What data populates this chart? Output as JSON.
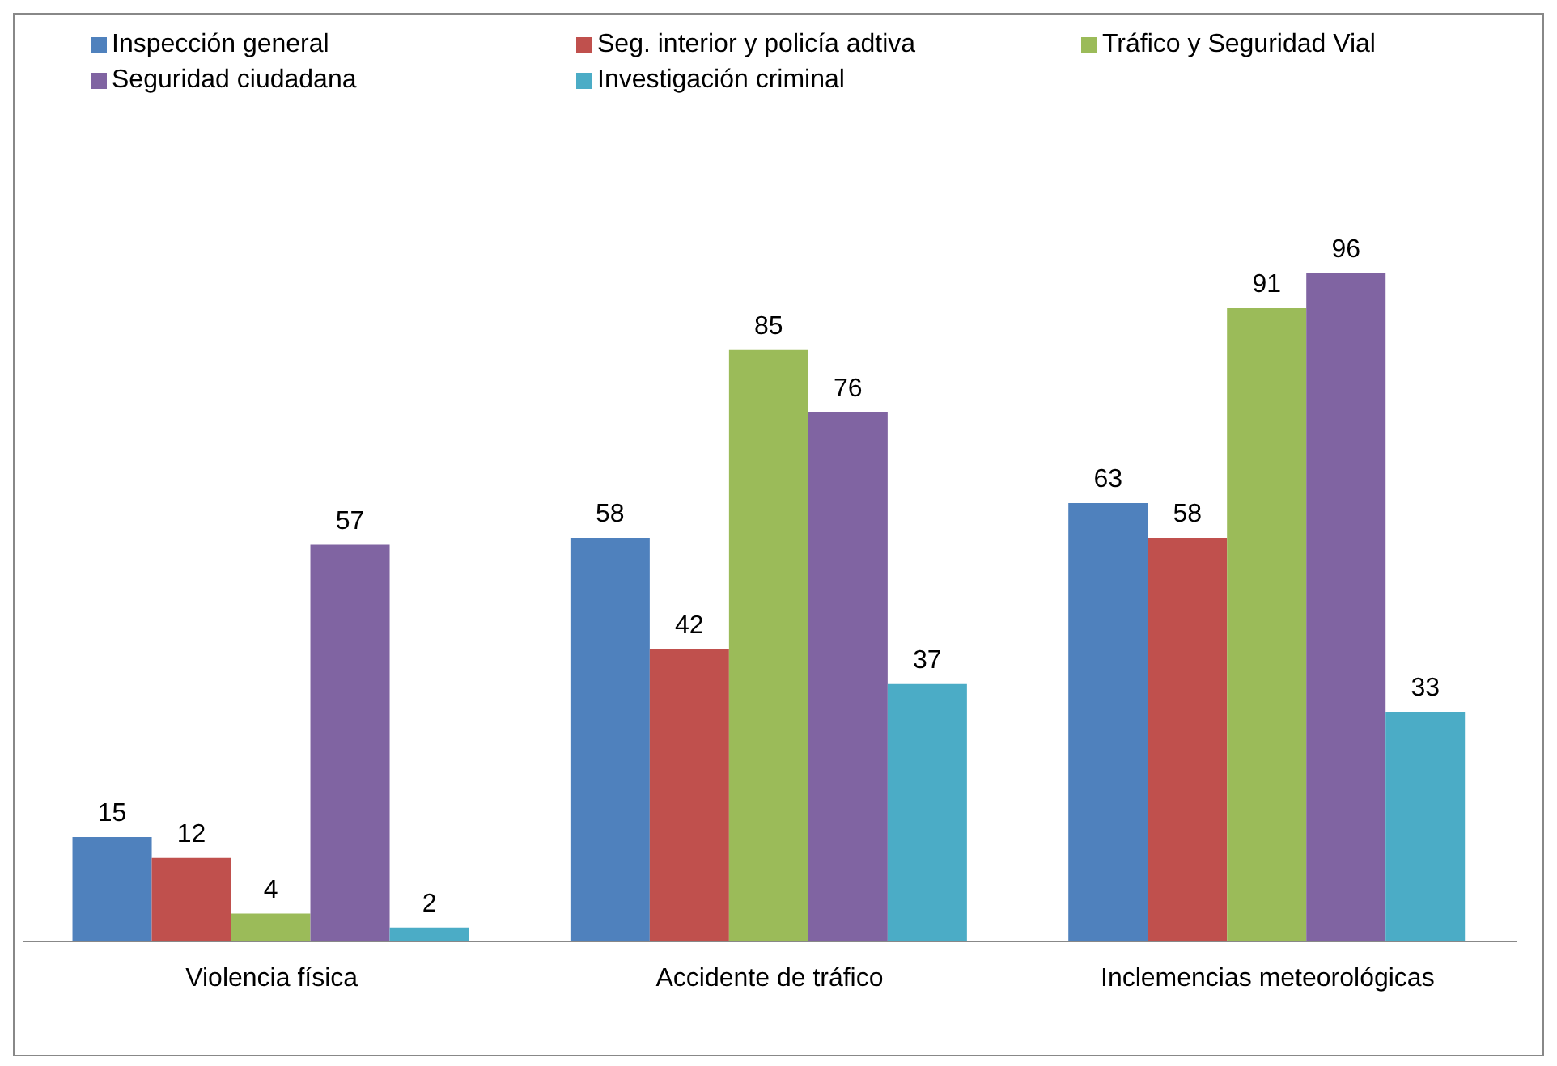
{
  "chart_data": {
    "type": "bar",
    "categories": [
      "Violencia física",
      "Accidente de tráfico",
      "Inclemencias meteorológicas"
    ],
    "series": [
      {
        "name": "Inspección general",
        "color": "#4f81bd",
        "values": [
          15,
          58,
          63
        ]
      },
      {
        "name": "Seg. interior y policía adtiva",
        "color": "#c0504d",
        "values": [
          12,
          42,
          58
        ]
      },
      {
        "name": "Tráfico y Seguridad Vial",
        "color": "#9bbb59",
        "values": [
          4,
          85,
          91
        ]
      },
      {
        "name": "Seguridad ciudadana",
        "color": "#8064a2",
        "values": [
          57,
          76,
          96
        ]
      },
      {
        "name": "Investigación criminal",
        "color": "#4bacc6",
        "values": [
          2,
          37,
          33
        ]
      }
    ],
    "data_labels": true,
    "legend": "top",
    "grid": false
  }
}
